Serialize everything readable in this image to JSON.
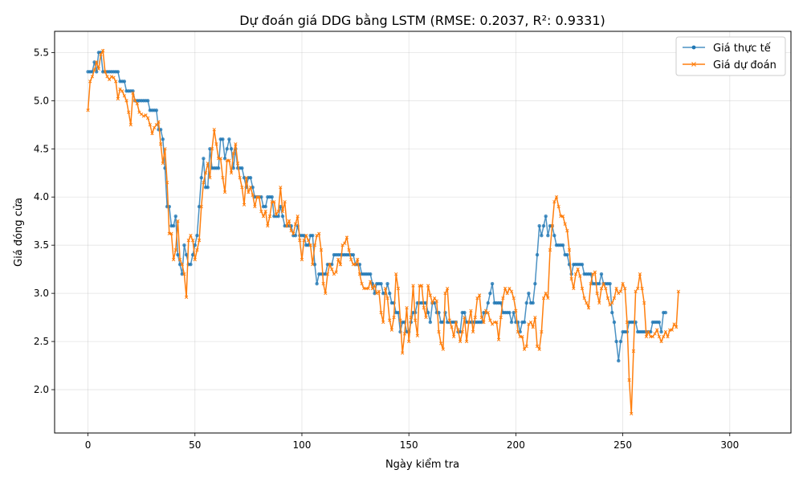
{
  "chart_data": {
    "type": "line",
    "title": "Dự đoán giá DDG bằng LSTM (RMSE: 0.2037, R²: 0.9331)",
    "xlabel": "Ngày kiểm tra",
    "ylabel": "Giá đóng cửa",
    "xlim": [
      -15.6,
      328.6
    ],
    "ylim": [
      1.55,
      5.72
    ],
    "xticks": [
      0,
      50,
      100,
      150,
      200,
      250,
      300
    ],
    "yticks": [
      2.0,
      2.5,
      3.0,
      3.5,
      4.0,
      4.5,
      5.0,
      5.5
    ],
    "grid": true,
    "legend_position": "top-right",
    "series": [
      {
        "name": "Giá thực tế",
        "color": "#1f77b4",
        "marker": "circle",
        "x_start": 0,
        "values": [
          5.3,
          5.3,
          5.3,
          5.4,
          5.3,
          5.5,
          5.5,
          5.3,
          5.3,
          5.3,
          5.3,
          5.3,
          5.3,
          5.3,
          5.3,
          5.2,
          5.2,
          5.2,
          5.1,
          5.1,
          5.1,
          5.1,
          5.0,
          5.0,
          5.0,
          5.0,
          5.0,
          5.0,
          5.0,
          4.9,
          4.9,
          4.9,
          4.9,
          4.7,
          4.7,
          4.6,
          4.3,
          3.9,
          3.9,
          3.7,
          3.7,
          3.8,
          3.4,
          3.3,
          3.2,
          3.5,
          3.4,
          3.3,
          3.3,
          3.4,
          3.5,
          3.6,
          3.9,
          4.2,
          4.4,
          4.1,
          4.1,
          4.5,
          4.3,
          4.3,
          4.3,
          4.3,
          4.6,
          4.6,
          4.4,
          4.5,
          4.6,
          4.5,
          4.3,
          4.5,
          4.3,
          4.3,
          4.3,
          4.2,
          4.1,
          4.2,
          4.2,
          4.1,
          4.0,
          4.0,
          4.0,
          4.0,
          3.9,
          3.9,
          4.0,
          4.0,
          4.0,
          3.8,
          3.8,
          3.8,
          3.9,
          3.8,
          3.7,
          3.7,
          3.7,
          3.7,
          3.6,
          3.6,
          3.7,
          3.6,
          3.6,
          3.6,
          3.5,
          3.5,
          3.6,
          3.6,
          3.3,
          3.1,
          3.2,
          3.2,
          3.2,
          3.2,
          3.3,
          3.3,
          3.3,
          3.4,
          3.4,
          3.4,
          3.4,
          3.4,
          3.4,
          3.4,
          3.4,
          3.4,
          3.4,
          3.3,
          3.3,
          3.3,
          3.2,
          3.2,
          3.2,
          3.2,
          3.2,
          3.1,
          3.0,
          3.1,
          3.1,
          3.1,
          3.0,
          3.0,
          3.1,
          3.0,
          2.9,
          2.9,
          2.8,
          2.8,
          2.6,
          2.7,
          2.7,
          2.6,
          2.6,
          2.7,
          2.8,
          2.8,
          2.9,
          2.9,
          2.9,
          2.9,
          2.9,
          2.8,
          2.7,
          2.9,
          2.9,
          2.8,
          2.8,
          2.7,
          2.7,
          2.8,
          2.7,
          2.7,
          2.7,
          2.7,
          2.7,
          2.6,
          2.6,
          2.8,
          2.8,
          2.7,
          2.7,
          2.7,
          2.7,
          2.7,
          2.7,
          2.7,
          2.7,
          2.8,
          2.8,
          2.9,
          3.0,
          3.1,
          2.9,
          2.9,
          2.9,
          2.9,
          2.8,
          2.8,
          2.8,
          2.8,
          2.7,
          2.8,
          2.7,
          2.7,
          2.6,
          2.7,
          2.7,
          2.9,
          3.0,
          2.9,
          2.9,
          3.1,
          3.4,
          3.7,
          3.6,
          3.7,
          3.8,
          3.6,
          3.7,
          3.7,
          3.6,
          3.5,
          3.5,
          3.5,
          3.5,
          3.4,
          3.4,
          3.3,
          3.2,
          3.3,
          3.3,
          3.3,
          3.3,
          3.3,
          3.2,
          3.2,
          3.2,
          3.2,
          3.1,
          3.1,
          3.1,
          3.1,
          3.2,
          3.1,
          3.1,
          3.1,
          3.1,
          2.8,
          2.7,
          2.5,
          2.3,
          2.5,
          2.6,
          2.6,
          2.6,
          2.7,
          2.7,
          2.7,
          2.7,
          2.6,
          2.6,
          2.6,
          2.6,
          2.6,
          2.6,
          2.6,
          2.7,
          2.7,
          2.7,
          2.7,
          2.6,
          2.8,
          2.8
        ]
      },
      {
        "name": "Giá dự đoán",
        "color": "#ff7f0e",
        "marker": "x",
        "x_start": 0,
        "values": [
          4.9,
          5.2,
          5.25,
          5.32,
          5.4,
          5.33,
          5.48,
          5.52,
          5.3,
          5.25,
          5.22,
          5.25,
          5.24,
          5.2,
          5.02,
          5.12,
          5.1,
          5.05,
          5.0,
          4.88,
          4.75,
          5.08,
          5.0,
          4.97,
          4.88,
          4.86,
          4.84,
          4.85,
          4.82,
          4.75,
          4.66,
          4.72,
          4.75,
          4.78,
          4.55,
          4.35,
          4.5,
          4.15,
          3.62,
          3.62,
          3.35,
          3.45,
          3.75,
          3.35,
          3.3,
          3.2,
          2.96,
          3.55,
          3.6,
          3.55,
          3.35,
          3.45,
          3.55,
          3.9,
          4.15,
          4.25,
          4.35,
          4.2,
          4.5,
          4.7,
          4.55,
          4.4,
          4.4,
          4.2,
          4.05,
          4.38,
          4.38,
          4.25,
          4.45,
          4.55,
          4.35,
          4.2,
          4.1,
          3.92,
          4.2,
          4.05,
          4.1,
          4.02,
          3.9,
          4.0,
          4.0,
          3.85,
          3.8,
          3.85,
          3.7,
          3.8,
          3.95,
          3.95,
          3.82,
          3.85,
          4.1,
          3.85,
          3.95,
          3.7,
          3.75,
          3.65,
          3.62,
          3.72,
          3.8,
          3.55,
          3.35,
          3.55,
          3.6,
          3.55,
          3.5,
          3.3,
          3.5,
          3.6,
          3.62,
          3.45,
          3.1,
          3.0,
          3.2,
          3.3,
          3.25,
          3.2,
          3.22,
          3.35,
          3.3,
          3.5,
          3.52,
          3.58,
          3.45,
          3.35,
          3.3,
          3.3,
          3.35,
          3.2,
          3.1,
          3.05,
          3.05,
          3.05,
          3.12,
          3.05,
          3.08,
          3.0,
          3.02,
          2.8,
          2.7,
          3.05,
          2.95,
          2.72,
          2.62,
          2.75,
          3.2,
          3.05,
          2.72,
          2.38,
          2.58,
          2.85,
          2.5,
          2.75,
          3.08,
          2.72,
          2.56,
          3.08,
          3.08,
          2.85,
          2.75,
          3.08,
          2.98,
          2.9,
          2.95,
          2.92,
          2.6,
          2.48,
          2.42,
          3.0,
          3.05,
          2.72,
          2.65,
          2.55,
          2.7,
          2.62,
          2.5,
          2.6,
          2.75,
          2.5,
          2.7,
          2.82,
          2.6,
          2.75,
          2.95,
          2.98,
          2.75,
          2.7,
          2.82,
          2.8,
          2.72,
          2.68,
          2.7,
          2.7,
          2.52,
          2.75,
          2.95,
          3.05,
          3.0,
          3.05,
          3.02,
          2.95,
          2.82,
          2.6,
          2.55,
          2.55,
          2.42,
          2.45,
          2.68,
          2.7,
          2.65,
          2.75,
          2.45,
          2.42,
          2.6,
          2.95,
          3.0,
          2.95,
          3.45,
          3.7,
          3.95,
          4.0,
          3.9,
          3.8,
          3.8,
          3.72,
          3.65,
          3.45,
          3.15,
          3.05,
          3.2,
          3.25,
          3.18,
          3.05,
          2.95,
          2.9,
          2.85,
          3.1,
          3.2,
          3.22,
          3.0,
          2.9,
          3.05,
          3.1,
          3.05,
          2.95,
          2.88,
          2.9,
          2.95,
          3.05,
          3.0,
          3.02,
          3.1,
          3.05,
          2.7,
          2.1,
          1.75,
          2.4,
          3.02,
          3.05,
          3.2,
          3.05,
          2.9,
          2.55,
          2.6,
          2.55,
          2.55,
          2.58,
          2.62,
          2.55,
          2.5,
          2.55,
          2.6,
          2.55,
          2.62,
          2.62,
          2.68,
          2.65,
          3.02
        ]
      }
    ]
  }
}
